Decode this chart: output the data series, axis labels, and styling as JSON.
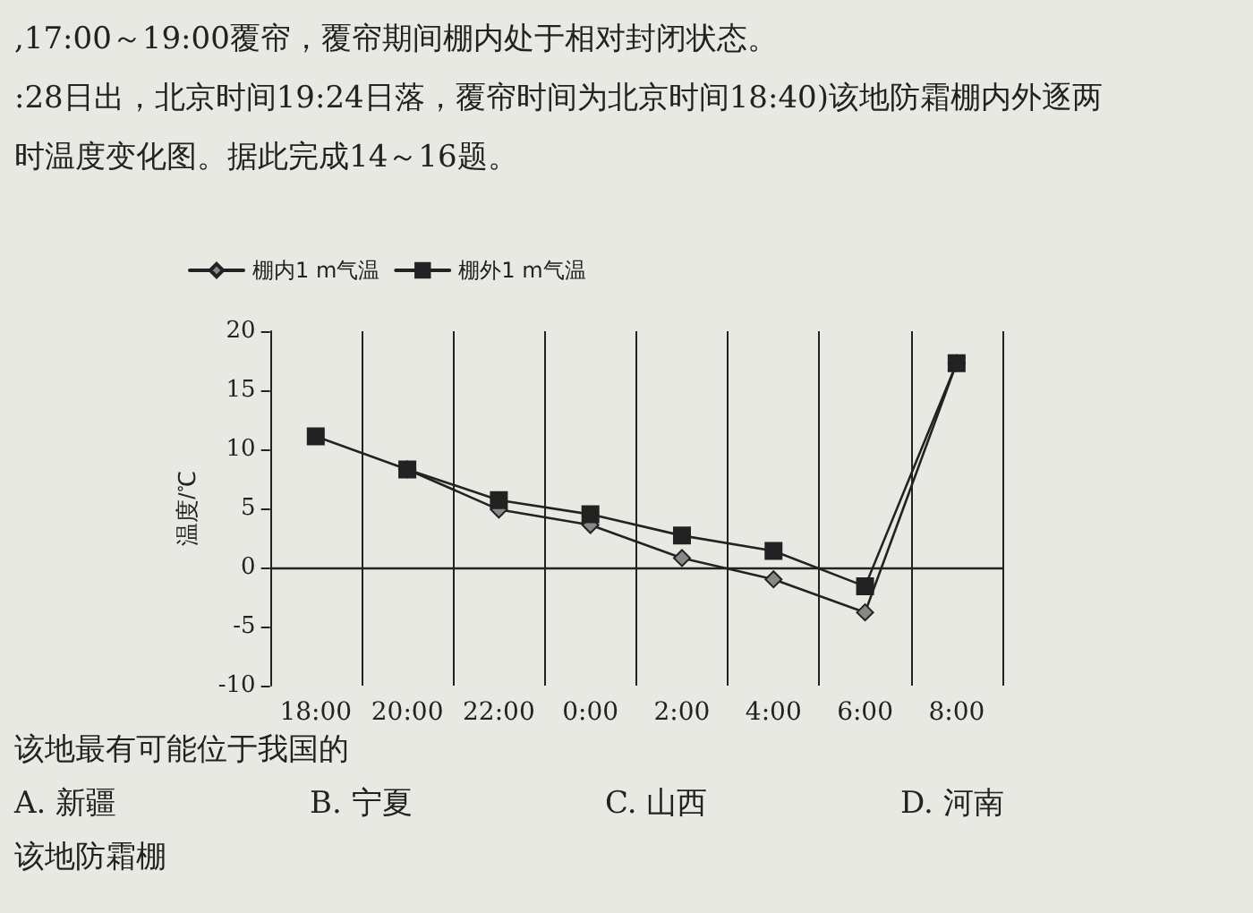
{
  "chart_data": {
    "type": "line",
    "annotations": [
      ",17:00～19:00覆帘，覆帘期间棚内处于相对封闭状态。",
      ":28日出，北京时间19:24日落，覆帘时间为北京时间18:40)该地防霜棚内外逐两",
      "时温度变化图。据此完成14～16题。",
      "该地最有可能位于我国的",
      "A. 新疆",
      "B. 宁夏",
      "C. 山西",
      "D. 河南",
      "该地防霜棚"
    ],
    "ylabel": "温度/℃",
    "categories": [
      "18:00",
      "20:00",
      "22:00",
      "0:00",
      "2:00",
      "4:00",
      "6:00",
      "8:00"
    ],
    "series": [
      {
        "name": "棚内1 m气温",
        "color": "#888888",
        "marker": "diamond",
        "values": [
          null,
          8.3,
          4.9,
          3.6,
          0.8,
          -1.0,
          -3.8,
          17.3
        ]
      },
      {
        "name": "棚外1 m气温",
        "color": "#222222",
        "marker": "square",
        "values": [
          11.1,
          8.3,
          5.7,
          4.5,
          2.7,
          1.4,
          -1.6,
          17.3
        ]
      }
    ],
    "ylim": [
      -10,
      20
    ],
    "yticks": [
      -10,
      -5,
      0,
      5,
      10,
      15,
      20
    ],
    "ref_lines": [
      {
        "axis": "y",
        "value": 0,
        "color": "#222222"
      }
    ],
    "grid": "x",
    "legend": "top left",
    "line_style": "solid"
  }
}
